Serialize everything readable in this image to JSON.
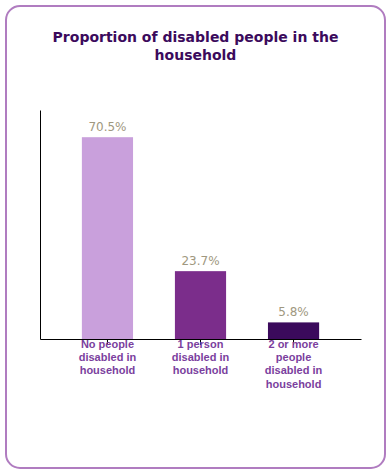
{
  "chart_data": {
    "type": "bar",
    "title": "Proportion of disabled people in the\nhousehold",
    "categories": [
      "No people\ndisabled in\nhousehold",
      "1 person\ndisabled in\nhousehold",
      "2 or more\npeople\ndisabled in\nhousehold"
    ],
    "values": [
      70.5,
      23.7,
      5.8
    ],
    "value_labels": [
      "70.5%",
      "23.7%",
      "5.8%"
    ],
    "colors": [
      "#c9a0dc",
      "#7b2d8b",
      "#3b0a5c"
    ],
    "ylim": [
      0,
      80
    ],
    "grid": false,
    "data_labels": true,
    "tick_labels": "x"
  }
}
